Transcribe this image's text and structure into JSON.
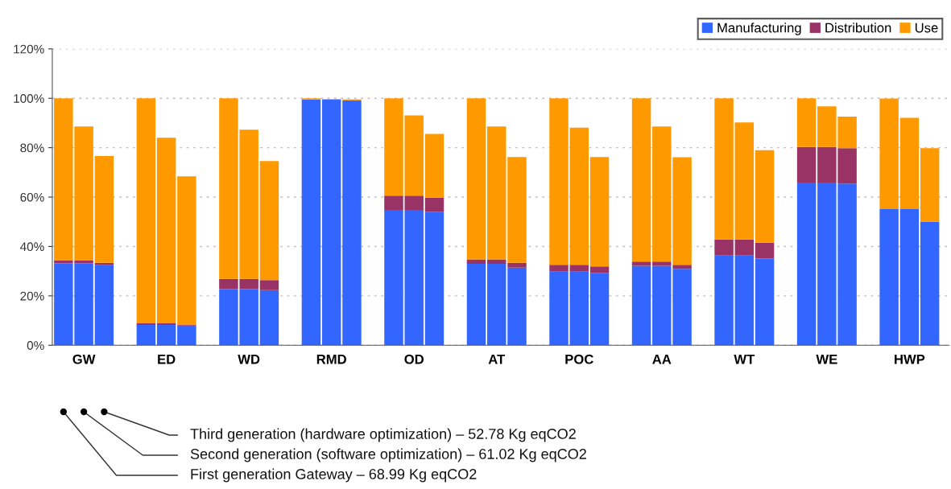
{
  "chart_data": {
    "type": "bar",
    "stacked": true,
    "categories": [
      null,
      "GW",
      null,
      null,
      "ED",
      null,
      null,
      "WD",
      null,
      null,
      "RMD",
      null,
      null,
      "OD",
      null,
      null,
      "AT",
      null,
      null,
      "POC",
      null,
      null,
      "AA",
      null,
      null,
      "WT",
      null,
      null,
      "WE",
      null,
      null,
      "HWP",
      null
    ],
    "series": [
      {
        "name": "Manufacturing",
        "color": "#3366ff",
        "values": [
          33.1,
          33.1,
          32.4,
          8.2,
          8.2,
          8.0,
          22.7,
          22.7,
          22.3,
          99.6,
          99.6,
          99.2,
          54.8,
          54.8,
          54.1,
          33.0,
          33.0,
          31.4,
          29.8,
          29.8,
          29.3,
          32.2,
          32.2,
          30.9,
          36.3,
          36.3,
          35.1,
          65.9,
          65.9,
          65.5,
          55.1,
          55.1,
          50.1
        ]
      },
      {
        "name": "Distribution",
        "color": "#993366",
        "values": [
          1.2,
          1.2,
          1.0,
          0.7,
          0.7,
          0.4,
          4.2,
          4.2,
          4.1,
          0,
          0,
          0,
          5.8,
          5.8,
          5.7,
          1.8,
          1.8,
          2.0,
          2.8,
          2.8,
          2.6,
          1.7,
          1.7,
          1.7,
          6.5,
          6.5,
          6.4,
          14.4,
          14.4,
          14.3,
          null,
          null,
          null
        ]
      },
      {
        "name": "Use",
        "color": "#ff9900",
        "values": [
          65.7,
          54.3,
          43.2,
          91.1,
          75.1,
          60.0,
          73.1,
          60.4,
          48.2,
          0.4,
          null,
          0.4,
          39.4,
          32.5,
          25.8,
          65.2,
          53.8,
          42.8,
          67.4,
          55.5,
          44.3,
          66.1,
          54.7,
          43.5,
          57.2,
          47.4,
          37.5,
          19.7,
          16.4,
          12.8,
          44.8,
          37.0,
          29.7
        ]
      }
    ],
    "ylim": [
      0,
      120
    ],
    "yticks": [
      {
        "value": 0,
        "label": "0%"
      },
      {
        "value": 20,
        "label": "20%"
      },
      {
        "value": 40,
        "label": "40%"
      },
      {
        "value": 60,
        "label": "60%"
      },
      {
        "value": 80,
        "label": "80%"
      },
      {
        "value": 100,
        "label": "100%"
      },
      {
        "value": 120,
        "label": "120%"
      }
    ],
    "grid": "y",
    "legend": "top right",
    "annotations": [
      "Third generation (hardware optimization) – 52.78 Kg eqCO2",
      "Second generation (software optimization) – 61.02 Kg eqCO2",
      "First generation Gateway – 68.99 Kg eqCO2"
    ]
  }
}
